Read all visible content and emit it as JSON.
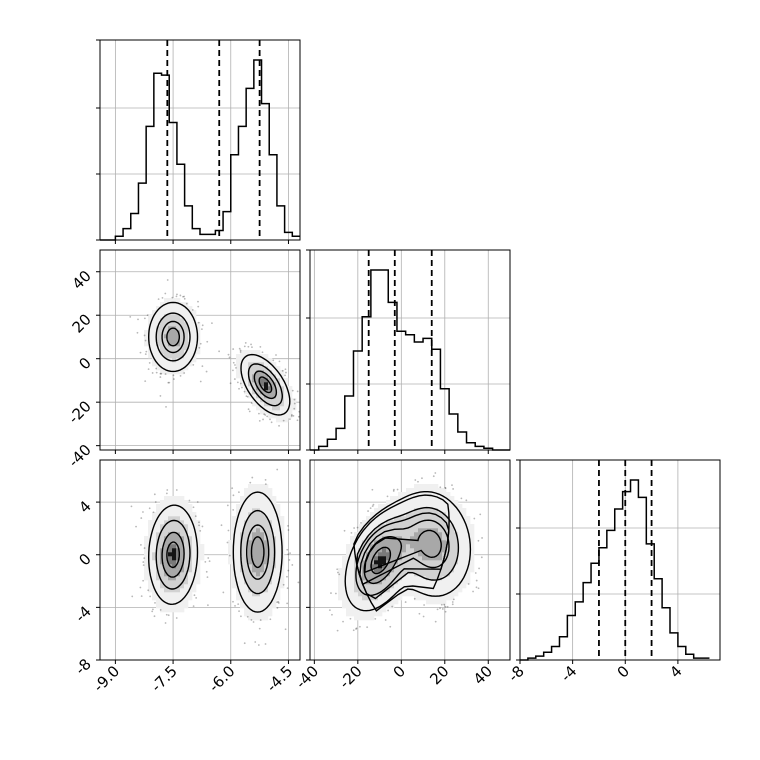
{
  "chart_data": {
    "type": "corner",
    "parameters": [
      "",
      "",
      ""
    ],
    "axis_ranges": [
      [
        -9.4,
        -4.2
      ],
      [
        -42,
        50
      ],
      [
        -8,
        7.2
      ]
    ],
    "ticks": [
      {
        "values": [
          -9.0,
          -7.5,
          -6.0,
          -4.5
        ],
        "labels": [
          "-9.0",
          "-7.5",
          "-6.0",
          "-4.5"
        ]
      },
      {
        "values": [
          -40,
          -20,
          0,
          20,
          40
        ],
        "labels": [
          "-40",
          "-20",
          "0",
          "20",
          "40"
        ]
      },
      {
        "values": [
          -8,
          -4,
          0,
          4
        ],
        "labels": [
          "-8",
          "-4",
          "0",
          "4"
        ]
      }
    ],
    "quantiles": [
      [
        -7.65,
        -6.3,
        -5.25
      ],
      [
        -15,
        -3,
        14
      ],
      [
        -2,
        0,
        2
      ]
    ],
    "histograms": [
      {
        "bin_edges": [
          -9.4,
          -9.2,
          -9.0,
          -8.8,
          -8.6,
          -8.4,
          -8.2,
          -8.0,
          -7.8,
          -7.6,
          -7.4,
          -7.2,
          -7.0,
          -6.8,
          -6.6,
          -6.4,
          -6.2,
          -6.0,
          -5.8,
          -5.6,
          -5.4,
          -5.2,
          -5.0,
          -4.8,
          -4.6,
          -4.4,
          -4.2
        ],
        "counts": [
          0,
          0,
          0.02,
          0.06,
          0.14,
          0.3,
          0.6,
          0.88,
          0.87,
          0.62,
          0.4,
          0.18,
          0.06,
          0.03,
          0.03,
          0.05,
          0.15,
          0.45,
          0.6,
          0.8,
          0.95,
          0.72,
          0.45,
          0.18,
          0.04,
          0.02
        ]
      },
      {
        "bin_edges": [
          -42,
          -38,
          -34,
          -30,
          -26,
          -22,
          -18,
          -14,
          -10,
          -6,
          -2,
          2,
          6,
          10,
          14,
          18,
          22,
          26,
          30,
          34,
          38,
          42,
          46,
          50
        ],
        "counts": [
          0,
          0.02,
          0.06,
          0.12,
          0.3,
          0.55,
          0.74,
          1.0,
          1.0,
          0.82,
          0.66,
          0.64,
          0.6,
          0.62,
          0.56,
          0.34,
          0.2,
          0.1,
          0.04,
          0.02,
          0.01,
          0,
          0
        ]
      },
      {
        "bin_edges": [
          -8,
          -7.4,
          -6.8,
          -6.2,
          -5.6,
          -5.0,
          -4.4,
          -3.8,
          -3.2,
          -2.6,
          -2.0,
          -1.4,
          -0.8,
          -0.2,
          0.4,
          1.0,
          1.6,
          2.2,
          2.8,
          3.4,
          4.0,
          4.6,
          5.2,
          5.8,
          6.4
        ],
        "counts": [
          0,
          0.01,
          0.02,
          0.04,
          0.07,
          0.12,
          0.23,
          0.3,
          0.4,
          0.5,
          0.58,
          0.67,
          0.78,
          0.87,
          0.93,
          0.84,
          0.6,
          0.42,
          0.27,
          0.14,
          0.07,
          0.03,
          0.01,
          0.01
        ]
      }
    ],
    "pairs": [
      {
        "row": 1,
        "col": 0,
        "clusters": [
          {
            "mx": -7.5,
            "my": 10,
            "sx": 0.32,
            "sy": 8,
            "rho": 0,
            "weight": 0.5
          },
          {
            "mx": -5.1,
            "my": -12,
            "sx": 0.32,
            "sy": 7,
            "rho": -0.55,
            "weight": 0.5
          }
        ]
      },
      {
        "row": 2,
        "col": 0,
        "clusters": [
          {
            "mx": -7.5,
            "my": 0,
            "sx": 0.32,
            "sy": 1.9,
            "rho": 0.05,
            "weight": 0.5
          },
          {
            "mx": -5.3,
            "my": 0.2,
            "sx": 0.32,
            "sy": 2.3,
            "rho": 0,
            "weight": 0.5
          }
        ]
      },
      {
        "row": 2,
        "col": 1,
        "clusters": [
          {
            "mx": -10,
            "my": -0.5,
            "sx": 8,
            "sy": 1.9,
            "rho": 0.4,
            "weight": 0.5
          },
          {
            "mx": 14,
            "my": 0.8,
            "sx": 9,
            "sy": 2.0,
            "rho": -0.1,
            "weight": 0.5
          }
        ]
      }
    ],
    "contour_levels": [
      0.86,
      0.61,
      0.33,
      0.12
    ],
    "grid": true,
    "colors": {
      "line": "#000000",
      "grid": "#b0b0b0",
      "points": "#000000",
      "fill": "#000000"
    }
  }
}
